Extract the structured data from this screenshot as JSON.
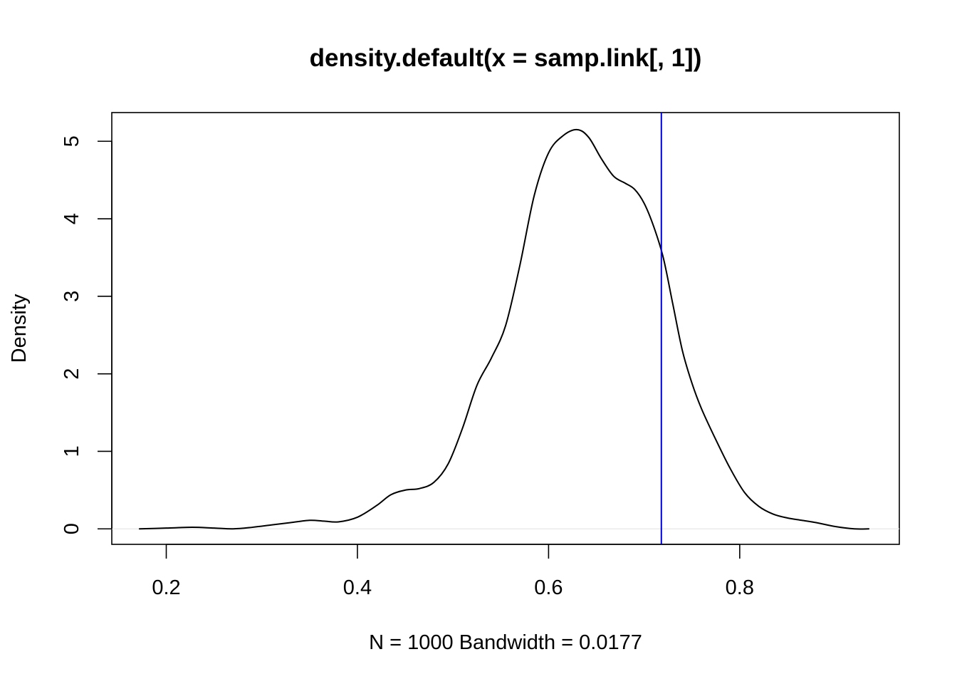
{
  "chart_data": {
    "type": "line",
    "title": "density.default(x = samp.link[, 1])",
    "xlabel": "N = 1000   Bandwidth = 0.0177",
    "ylabel": "Density",
    "xlim": [
      0.143,
      0.967
    ],
    "ylim": [
      -0.2,
      5.37
    ],
    "x_ticks": [
      0.2,
      0.4,
      0.6,
      0.8
    ],
    "x_tick_labels": [
      "0.2",
      "0.4",
      "0.6",
      "0.8"
    ],
    "y_ticks": [
      0,
      1,
      2,
      3,
      4,
      5
    ],
    "y_tick_labels": [
      "0",
      "1",
      "2",
      "3",
      "4",
      "5"
    ],
    "grid": false,
    "legend": "none",
    "reference_line": {
      "orientation": "vertical",
      "x": 0.718,
      "color": "#0000CC"
    },
    "baseline": {
      "y": 0,
      "color": "#E6E6E6"
    },
    "series": [
      {
        "color": "#000000",
        "x": [
          0.172,
          0.2,
          0.227,
          0.25,
          0.27,
          0.29,
          0.31,
          0.33,
          0.35,
          0.365,
          0.38,
          0.4,
          0.42,
          0.435,
          0.45,
          0.465,
          0.48,
          0.495,
          0.51,
          0.525,
          0.54,
          0.555,
          0.57,
          0.585,
          0.6,
          0.615,
          0.63,
          0.642,
          0.655,
          0.668,
          0.68,
          0.69,
          0.7,
          0.71,
          0.72,
          0.73,
          0.74,
          0.75,
          0.76,
          0.775,
          0.79,
          0.805,
          0.82,
          0.835,
          0.85,
          0.865,
          0.88,
          0.9,
          0.92,
          0.935
        ],
        "y": [
          0.0,
          0.01,
          0.02,
          0.01,
          0.0,
          0.02,
          0.05,
          0.08,
          0.11,
          0.1,
          0.09,
          0.15,
          0.3,
          0.44,
          0.5,
          0.52,
          0.6,
          0.84,
          1.3,
          1.85,
          2.2,
          2.62,
          3.4,
          4.3,
          4.85,
          5.07,
          5.15,
          5.05,
          4.78,
          4.55,
          4.46,
          4.38,
          4.2,
          3.9,
          3.5,
          2.9,
          2.3,
          1.88,
          1.55,
          1.15,
          0.78,
          0.47,
          0.29,
          0.19,
          0.14,
          0.11,
          0.08,
          0.03,
          0.0,
          0.0
        ]
      }
    ]
  }
}
